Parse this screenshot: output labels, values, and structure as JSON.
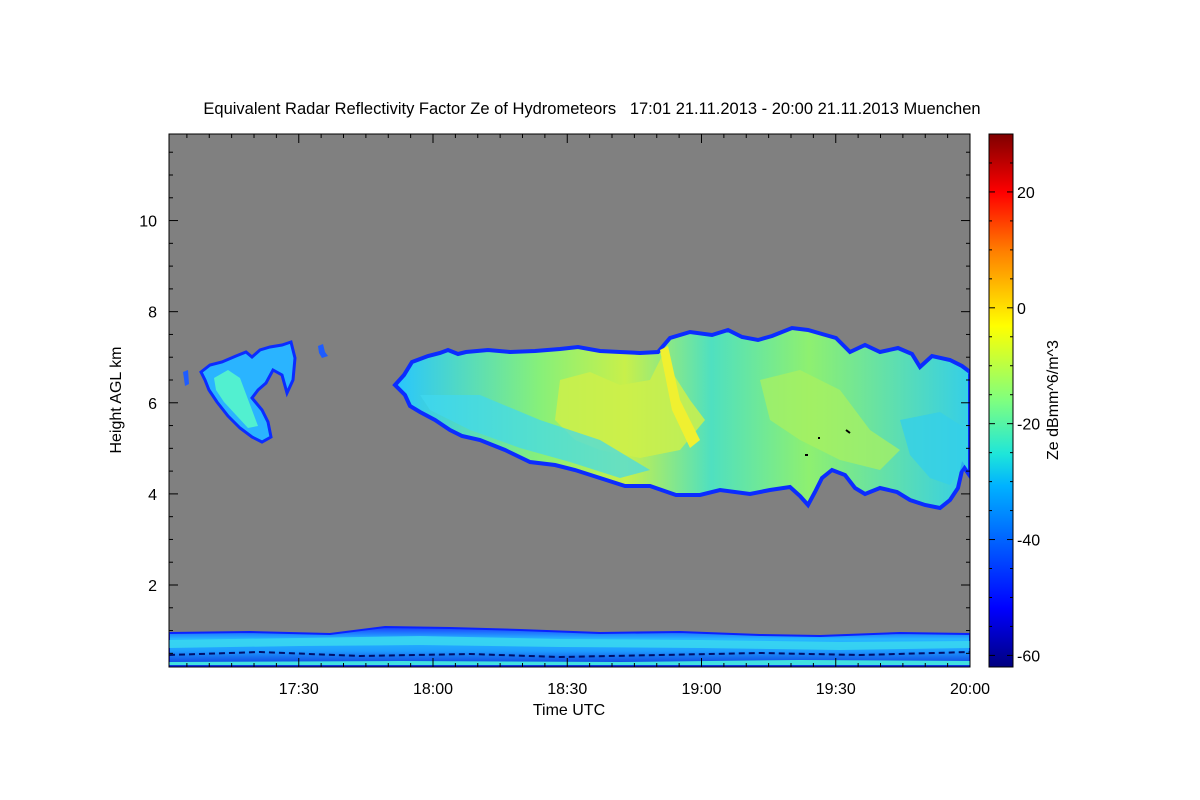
{
  "chart_data": {
    "type": "heatmap",
    "title": "Equivalent Radar Reflectivity Factor Ze of Hydrometeors   17:01 21.11.2013 - 20:00 21.11.2013 Muenchen",
    "xlabel": "Time UTC",
    "ylabel": "Height AGL km",
    "xlim": [
      17.0167,
      20.0
    ],
    "ylim": [
      0.2,
      11.9
    ],
    "x_ticks": [
      {
        "value": 17.5,
        "label": "17:30"
      },
      {
        "value": 18.0,
        "label": "18:00"
      },
      {
        "value": 18.5,
        "label": "18:30"
      },
      {
        "value": 19.0,
        "label": "19:00"
      },
      {
        "value": 19.5,
        "label": "19:30"
      },
      {
        "value": 20.0,
        "label": "20:00"
      }
    ],
    "y_ticks": [
      {
        "value": 2,
        "label": "2"
      },
      {
        "value": 4,
        "label": "4"
      },
      {
        "value": 6,
        "label": "6"
      },
      {
        "value": 8,
        "label": "8"
      },
      {
        "value": 10,
        "label": "10"
      }
    ],
    "colorbar": {
      "label": "Ze dBmm^6/m^3",
      "range": [
        -62,
        30
      ],
      "ticks": [
        {
          "value": -60,
          "label": "-60"
        },
        {
          "value": -40,
          "label": "-40"
        },
        {
          "value": -20,
          "label": "-20"
        },
        {
          "value": 0,
          "label": "0"
        },
        {
          "value": 20,
          "label": "20"
        }
      ]
    },
    "no_data_color": "#808080",
    "features": [
      {
        "name": "upper-cloud-early",
        "x_start": 17.1,
        "x_end": 17.55,
        "base_km": 5.2,
        "top_km": 7.4,
        "max_dbz": -28
      },
      {
        "name": "upper-cloud-small",
        "x_start": 17.62,
        "x_end": 17.65,
        "base_km": 7.0,
        "top_km": 7.3,
        "max_dbz": -40
      },
      {
        "name": "main-cloud-system",
        "x_start": 17.9,
        "x_end": 20.0,
        "base_km": 3.7,
        "top_km": 7.7,
        "max_dbz": -10
      },
      {
        "name": "low-level-layer",
        "x_start": 17.0167,
        "x_end": 20.0,
        "base_km": 0.2,
        "top_km": 1.0,
        "max_dbz": -25
      }
    ]
  }
}
